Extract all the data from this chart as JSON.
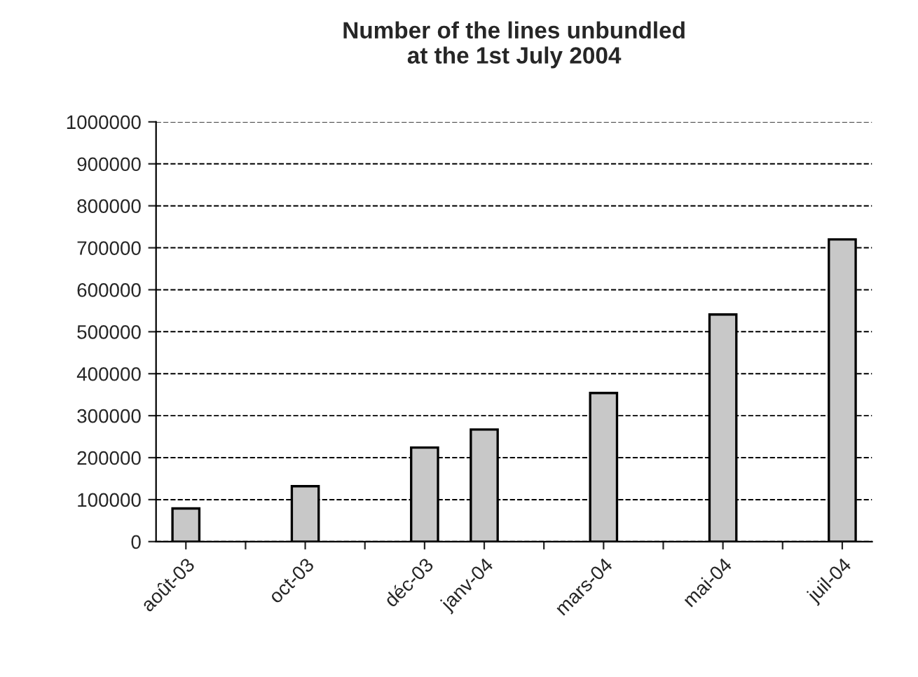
{
  "chart_data": {
    "type": "bar",
    "title": "Number of the lines unbundled\nat the 1st July 2004",
    "categories": [
      "août-03",
      null,
      "oct-03",
      null,
      "déc-03",
      "janv-04",
      null,
      "mars-04",
      null,
      "mai-04",
      null,
      "juil-04"
    ],
    "values": [
      79000,
      null,
      132000,
      null,
      224000,
      267000,
      null,
      354000,
      null,
      541000,
      null,
      720000
    ],
    "color": "#c8c8c8",
    "ylim": [
      0,
      1000000
    ],
    "yticks": [
      0,
      100000,
      200000,
      300000,
      400000,
      500000,
      600000,
      700000,
      800000,
      900000,
      1000000
    ],
    "grid": "y",
    "line_style": "dashed"
  }
}
